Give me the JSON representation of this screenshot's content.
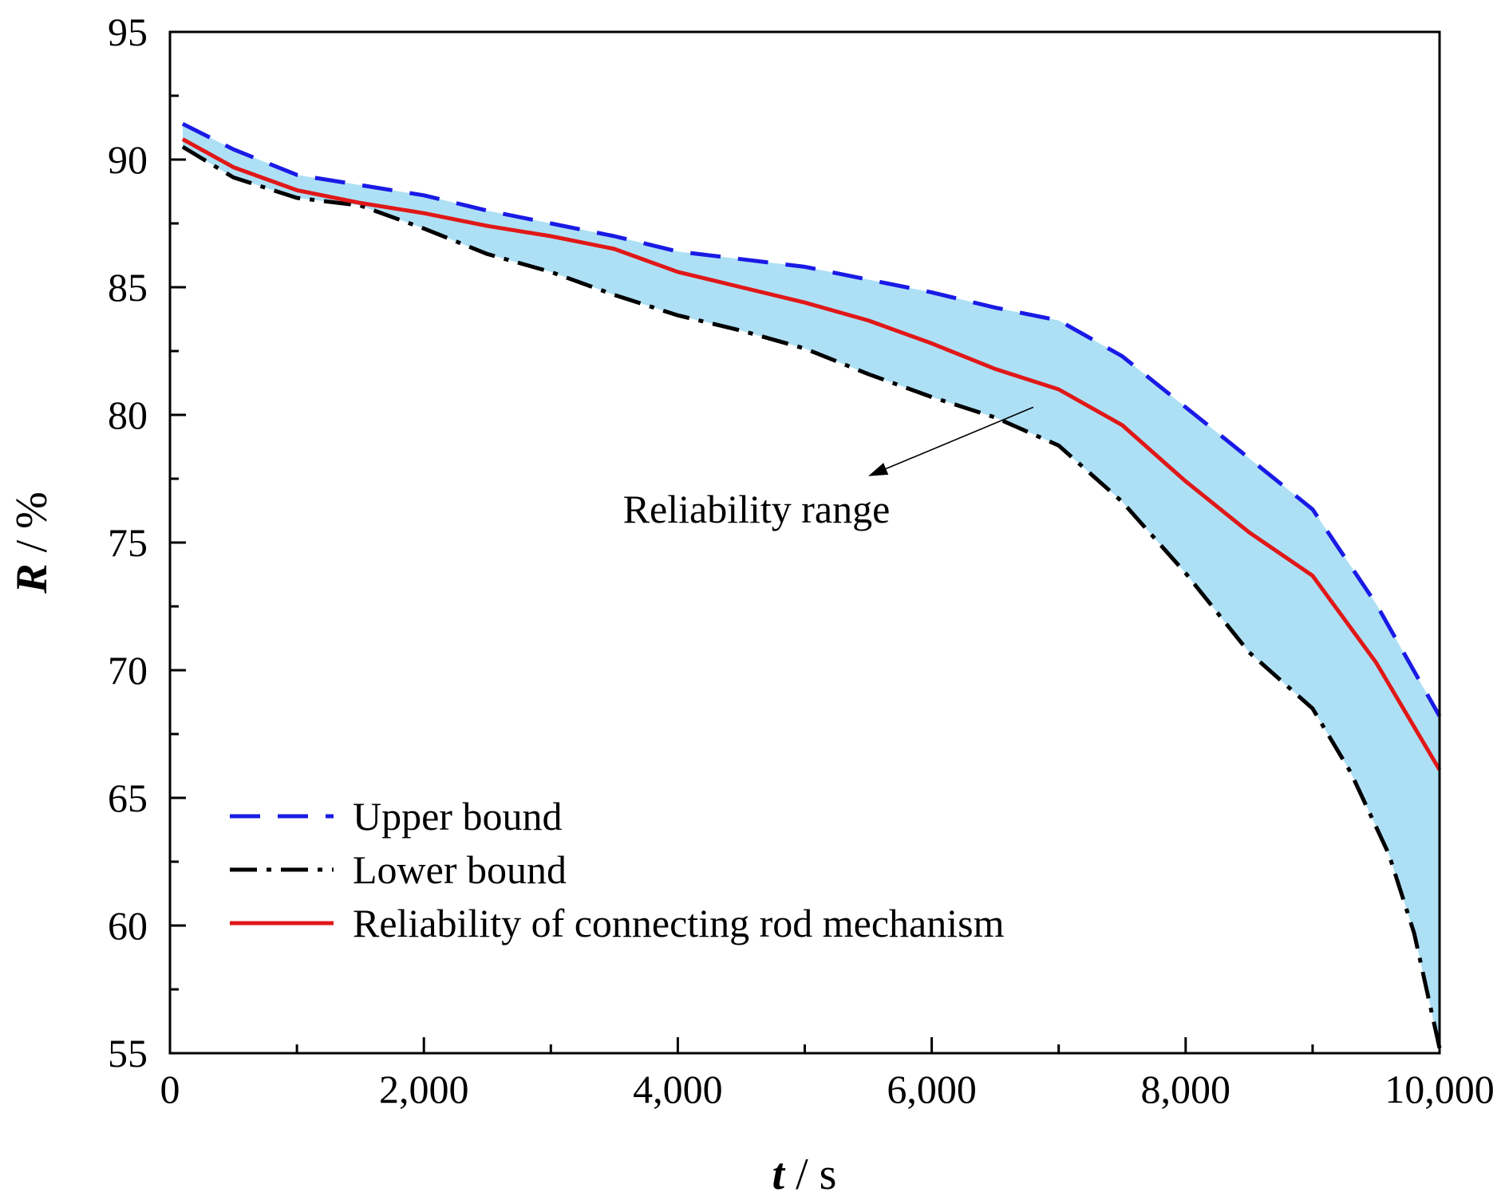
{
  "chart_data": {
    "type": "line",
    "title": "",
    "xlabel": {
      "symbol": "t",
      "unit": " / s"
    },
    "ylabel": {
      "symbol": "R",
      "unit": " / %"
    },
    "xlim": [
      0,
      10000
    ],
    "ylim": [
      55,
      95
    ],
    "xticks": [
      0,
      2000,
      4000,
      6000,
      8000,
      10000
    ],
    "xtick_labels": [
      "0",
      "2,000",
      "4,000",
      "6,000",
      "8,000",
      "10,000"
    ],
    "yticks": [
      55,
      60,
      65,
      70,
      75,
      80,
      85,
      90,
      95
    ],
    "ytick_labels": [
      "55",
      "60",
      "65",
      "70",
      "75",
      "80",
      "85",
      "90",
      "95"
    ],
    "grid": false,
    "legend_position": "bottom-left",
    "band": {
      "label": "Reliability range",
      "between": [
        "Upper bound",
        "Lower bound"
      ],
      "color": "#aee0f5"
    },
    "series": [
      {
        "name": "Upper bound",
        "style": "dashed",
        "color": "#1a1ae6",
        "x": [
          100,
          500,
          1000,
          1500,
          2000,
          2500,
          3000,
          3500,
          4000,
          4500,
          5000,
          5500,
          6000,
          6500,
          7000,
          7500,
          8000,
          8500,
          9000,
          9500,
          10000
        ],
        "y": [
          91.4,
          90.4,
          89.4,
          89.0,
          88.6,
          88.0,
          87.5,
          87.0,
          86.4,
          86.1,
          85.8,
          85.3,
          84.8,
          84.2,
          83.7,
          82.3,
          80.3,
          78.3,
          76.3,
          72.6,
          68.2
        ]
      },
      {
        "name": "Lower bound",
        "style": "dashdot",
        "color": "#000000",
        "x": [
          100,
          500,
          1000,
          1500,
          2000,
          2500,
          3000,
          3500,
          4000,
          4500,
          5000,
          5500,
          6000,
          6500,
          7000,
          7500,
          8000,
          8500,
          9000,
          9300,
          9600,
          9800,
          10000
        ],
        "y": [
          90.5,
          89.3,
          88.5,
          88.2,
          87.3,
          86.3,
          85.6,
          84.7,
          83.9,
          83.3,
          82.6,
          81.6,
          80.7,
          79.9,
          78.8,
          76.6,
          73.8,
          70.7,
          68.5,
          66.0,
          62.8,
          59.7,
          55.2
        ]
      },
      {
        "name": "Reliability of connecting rod mechanism",
        "style": "solid",
        "color": "#e01818",
        "x": [
          100,
          500,
          1000,
          1500,
          2000,
          2500,
          3000,
          3500,
          4000,
          4500,
          5000,
          5500,
          6000,
          6500,
          7000,
          7500,
          8000,
          8500,
          9000,
          9500,
          10000
        ],
        "y": [
          90.8,
          89.7,
          88.8,
          88.3,
          87.9,
          87.4,
          87.0,
          86.5,
          85.6,
          85.0,
          84.4,
          83.7,
          82.8,
          81.8,
          81.0,
          79.6,
          77.4,
          75.4,
          73.7,
          70.3,
          66.1
        ]
      }
    ],
    "annotations": [
      {
        "text": "Reliability range",
        "arrow_from": [
          6800,
          80.3
        ],
        "arrow_to": [
          5500,
          77.6
        ]
      }
    ]
  }
}
